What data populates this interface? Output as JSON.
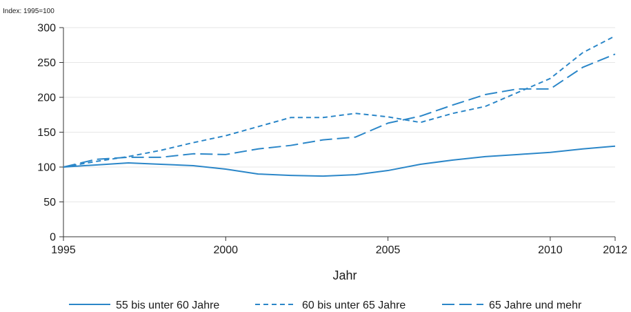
{
  "chart_data": {
    "type": "line",
    "title": "",
    "index_note": "Index: 1995=100",
    "xlabel": "Jahr",
    "ylabel": "",
    "xlim": [
      1995,
      2012
    ],
    "ylim": [
      0,
      300
    ],
    "x_ticks": [
      1995,
      2000,
      2005,
      2010,
      2012
    ],
    "x_tick_labels": [
      "1995",
      "2000",
      "2005",
      "2010",
      "2012"
    ],
    "y_ticks": [
      0,
      50,
      100,
      150,
      200,
      250,
      300
    ],
    "y_tick_labels": [
      "0",
      "50",
      "100",
      "150",
      "200",
      "250",
      "300"
    ],
    "grid": true,
    "legend_position": "bottom",
    "color": "#2a86c8",
    "x": [
      1995,
      1996,
      1997,
      1998,
      1999,
      2000,
      2001,
      2002,
      2003,
      2004,
      2005,
      2006,
      2007,
      2008,
      2009,
      2010,
      2011,
      2012
    ],
    "series": [
      {
        "name": "55 bis unter 60 Jahre",
        "style": "solid",
        "values": [
          100,
          103,
          106,
          104,
          102,
          97,
          90,
          88,
          87,
          89,
          95,
          104,
          110,
          115,
          118,
          121,
          126,
          130
        ]
      },
      {
        "name": "60 bis unter 65 Jahre",
        "style": "short-dash",
        "values": [
          100,
          108,
          115,
          124,
          135,
          145,
          158,
          171,
          171,
          177,
          172,
          164,
          177,
          187,
          207,
          227,
          264,
          288
        ]
      },
      {
        "name": "65 Jahre und mehr",
        "style": "long-dash",
        "values": [
          100,
          111,
          114,
          114,
          119,
          118,
          126,
          131,
          139,
          143,
          163,
          173,
          189,
          204,
          212,
          212,
          243,
          262
        ]
      }
    ]
  }
}
